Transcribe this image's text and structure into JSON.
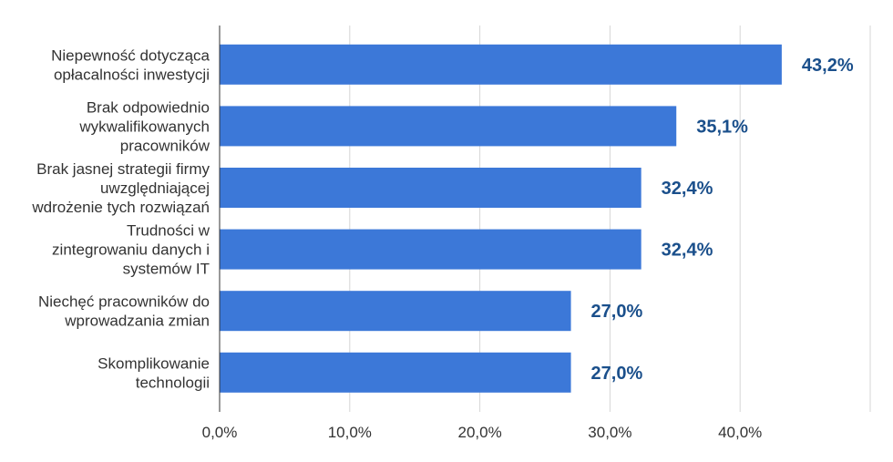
{
  "chart_data": {
    "type": "bar",
    "orientation": "horizontal",
    "categories": [
      [
        "Niepewność dotycząca",
        "opłacalności inwestycji"
      ],
      [
        "Brak odpowiednio",
        "wykwalifikowanych",
        "pracowników"
      ],
      [
        "Brak jasnej strategii firmy",
        "uwzględniającej",
        "wdrożenie tych rozwiązań"
      ],
      [
        "Trudności w",
        "zintegrowaniu danych i",
        "systemów IT"
      ],
      [
        "Niechęć pracowników do",
        "wprowadzania zmian"
      ],
      [
        "Skomplikowanie",
        "technologii"
      ]
    ],
    "values": [
      43.2,
      35.1,
      32.4,
      32.4,
      27.0,
      27.0
    ],
    "value_labels": [
      "43,2%",
      "35,1%",
      "32,4%",
      "32,4%",
      "27,0%",
      "27,0%"
    ],
    "xlim": [
      0,
      50
    ],
    "x_ticks": [
      0,
      10,
      20,
      30,
      40
    ],
    "x_tick_labels": [
      "0,0%",
      "10,0%",
      "20,0%",
      "30,0%",
      "40,0%"
    ],
    "grid": true,
    "bar_color": "#3c78d8",
    "data_label_color": "#1a4f8b",
    "title": "",
    "xlabel": "",
    "ylabel": ""
  }
}
